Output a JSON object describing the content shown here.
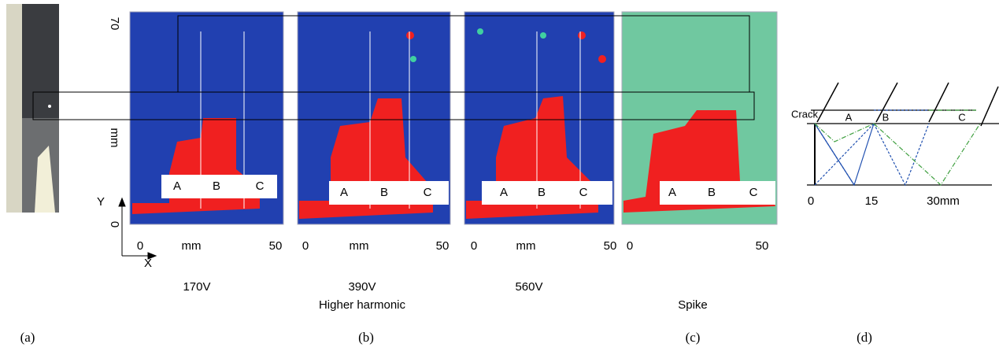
{
  "y_axis": {
    "ticks": [
      "70",
      "mm",
      "0"
    ],
    "y_arrow": "Y",
    "x_arrow": "X"
  },
  "scans": [
    {
      "voltage": "170V",
      "x_ticks": [
        "0",
        "mm",
        "50"
      ],
      "markers": [
        "A",
        "B",
        "C"
      ]
    },
    {
      "voltage": "390V",
      "x_ticks": [
        "0",
        "mm",
        "50"
      ],
      "markers": [
        "A",
        "B",
        "C"
      ]
    },
    {
      "voltage": "560V",
      "x_ticks": [
        "0",
        "mm",
        "50"
      ],
      "markers": [
        "A",
        "B",
        "C"
      ]
    },
    {
      "x_ticks": [
        "0",
        "50"
      ],
      "markers": [
        "A",
        "B",
        "C"
      ]
    }
  ],
  "group_labels": {
    "higher_harmonic": "Higher harmonic",
    "spike": "Spike"
  },
  "captions": [
    "(a)",
    "(b)",
    "(c)",
    "(d)"
  ],
  "diagram": {
    "crack": "Crack",
    "segments": [
      "A",
      "B",
      "C"
    ],
    "ticks": [
      "0",
      "15",
      "30mm"
    ]
  }
}
